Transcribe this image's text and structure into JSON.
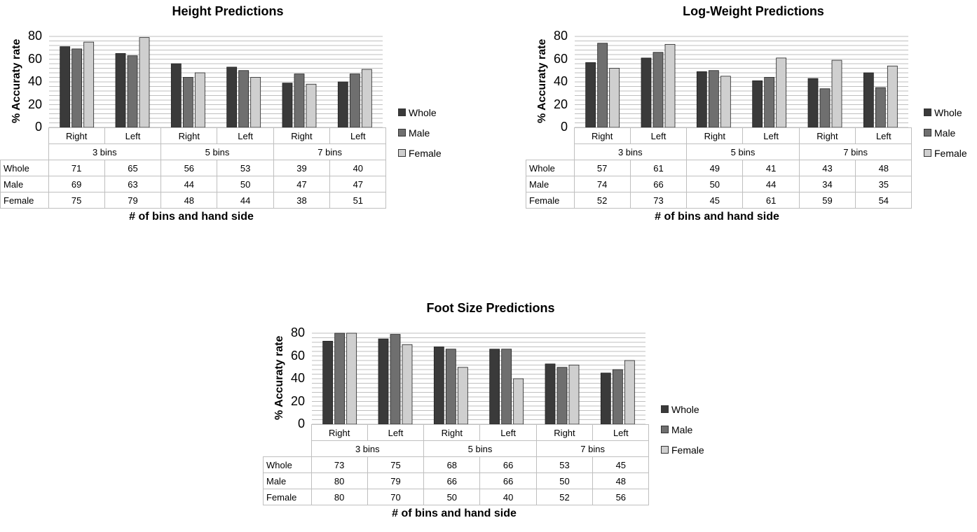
{
  "colors": {
    "Whole": "#3a3a3a",
    "Male": "#6f6f6f",
    "Female": "#cfcfcf",
    "grid": "#bfbfbf"
  },
  "chart_data": [
    {
      "type": "bar",
      "title": "Height Predictions",
      "xlabel": "# of bins and hand side",
      "ylabel": "% Accuraty rate",
      "ylim": [
        0,
        80
      ],
      "yticks": [
        "0",
        "20",
        "40",
        "60",
        "80"
      ],
      "categories": [
        "Right",
        "Left",
        "Right",
        "Left",
        "Right",
        "Left"
      ],
      "groups": [
        "3 bins",
        "5 bins",
        "7 bins"
      ],
      "series": [
        {
          "name": "Whole",
          "values": [
            71,
            65,
            56,
            53,
            39,
            40
          ]
        },
        {
          "name": "Male",
          "values": [
            69,
            63,
            44,
            50,
            47,
            47
          ]
        },
        {
          "name": "Female",
          "values": [
            75,
            79,
            48,
            44,
            38,
            51
          ]
        }
      ],
      "legend": "right"
    },
    {
      "type": "bar",
      "title": "Log-Weight Predictions",
      "xlabel": "# of bins and hand side",
      "ylabel": "% Accuraty rate",
      "ylim": [
        0,
        80
      ],
      "yticks": [
        "0",
        "20",
        "40",
        "60",
        "80"
      ],
      "categories": [
        "Right",
        "Left",
        "Right",
        "Left",
        "Right",
        "Left"
      ],
      "groups": [
        "3 bins",
        "5 bins",
        "7 bins"
      ],
      "series": [
        {
          "name": "Whole",
          "values": [
            57,
            61,
            49,
            41,
            43,
            48
          ]
        },
        {
          "name": "Male",
          "values": [
            74,
            66,
            50,
            44,
            34,
            35
          ]
        },
        {
          "name": "Female",
          "values": [
            52,
            73,
            45,
            61,
            59,
            54
          ]
        }
      ],
      "legend": "right"
    },
    {
      "type": "bar",
      "title": "Foot Size Predictions",
      "xlabel": "# of bins and hand side",
      "ylabel": "% Accuraty rate",
      "ylim": [
        0,
        80
      ],
      "yticks": [
        "0",
        "20",
        "40",
        "60",
        "80"
      ],
      "categories": [
        "Right",
        "Left",
        "Right",
        "Left",
        "Right",
        "Left"
      ],
      "groups": [
        "3 bins",
        "5 bins",
        "7 bins"
      ],
      "series": [
        {
          "name": "Whole",
          "values": [
            73,
            75,
            68,
            66,
            53,
            45
          ]
        },
        {
          "name": "Male",
          "values": [
            80,
            79,
            66,
            66,
            50,
            48
          ]
        },
        {
          "name": "Female",
          "values": [
            80,
            70,
            50,
            40,
            52,
            56
          ]
        }
      ],
      "legend": "right"
    }
  ]
}
